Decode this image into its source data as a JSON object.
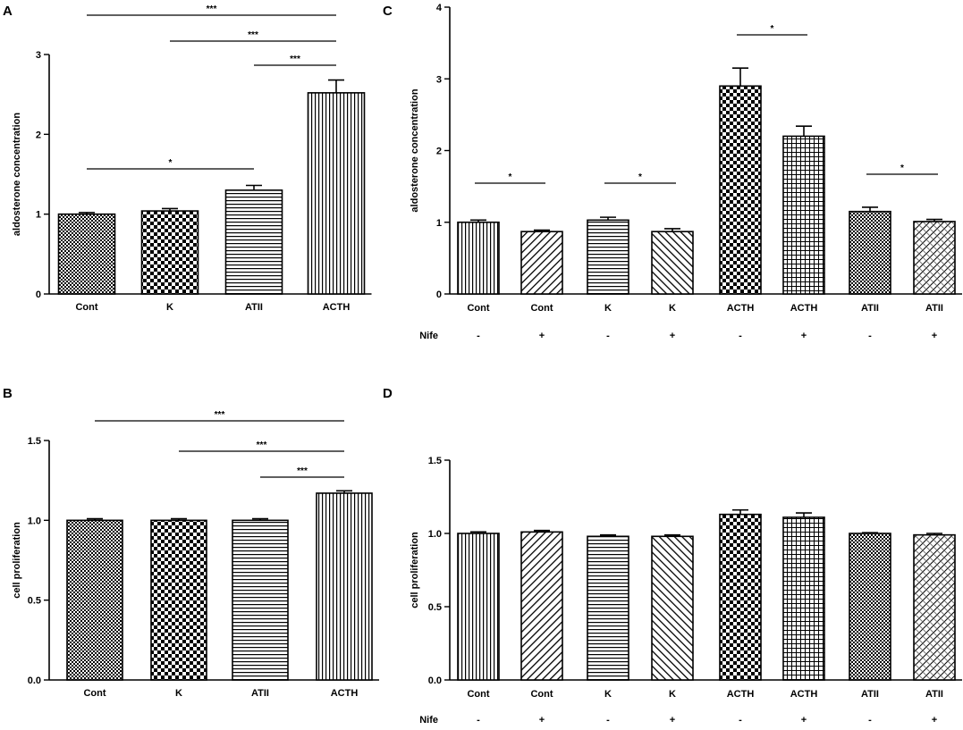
{
  "chart_data": [
    {
      "panel": "A",
      "type": "bar",
      "ylabel": "aldosterone concentration",
      "xlabel": "",
      "ylim": [
        0,
        3
      ],
      "yticks": [
        "0",
        "1",
        "2",
        "3"
      ],
      "categories": [
        "Cont",
        "K",
        "ATII",
        "ACTH"
      ],
      "values": [
        1.0,
        1.04,
        1.3,
        2.52
      ],
      "errors": [
        0.02,
        0.03,
        0.06,
        0.16
      ],
      "patterns": [
        "checker-fine",
        "checker-coarse",
        "hlines",
        "vlines"
      ],
      "significance": [
        {
          "from": 0,
          "to": 3,
          "label": "***"
        },
        {
          "from": 1,
          "to": 3,
          "label": "***"
        },
        {
          "from": 2,
          "to": 3,
          "label": "***"
        },
        {
          "from": 0,
          "to": 2,
          "label": "*"
        }
      ]
    },
    {
      "panel": "B",
      "type": "bar",
      "ylabel": "cell proliferation",
      "xlabel": "",
      "ylim": [
        0,
        1.5
      ],
      "yticks": [
        "0.0",
        "0.5",
        "1.0",
        "1.5"
      ],
      "categories": [
        "Cont",
        "K",
        "ATII",
        "ACTH"
      ],
      "values": [
        1.0,
        1.0,
        1.0,
        1.17
      ],
      "errors": [
        0.01,
        0.01,
        0.01,
        0.015
      ],
      "patterns": [
        "checker-fine",
        "checker-coarse",
        "hlines",
        "vlines"
      ],
      "significance": [
        {
          "from": 0,
          "to": 3,
          "label": "***"
        },
        {
          "from": 1,
          "to": 3,
          "label": "***"
        },
        {
          "from": 2,
          "to": 3,
          "label": "***"
        }
      ]
    },
    {
      "panel": "C",
      "type": "bar",
      "ylabel": "aldosterone concentration",
      "xlabel": "",
      "ylim": [
        0,
        4
      ],
      "yticks": [
        "0",
        "1",
        "2",
        "3",
        "4"
      ],
      "categories": [
        "Cont",
        "Cont",
        "K",
        "K",
        "ACTH",
        "ACTH",
        "ATII",
        "ATII"
      ],
      "row_label": "Nife",
      "nife": [
        "-",
        "+",
        "-",
        "+",
        "-",
        "+",
        "-",
        "+"
      ],
      "values": [
        1.0,
        0.87,
        1.03,
        0.87,
        2.9,
        2.2,
        1.15,
        1.01
      ],
      "errors": [
        0.03,
        0.02,
        0.04,
        0.04,
        0.25,
        0.14,
        0.06,
        0.03
      ],
      "patterns": [
        "vlines",
        "diag-right",
        "hlines",
        "diag-left",
        "checker-coarse",
        "grid",
        "checker-fine",
        "weave"
      ],
      "significance": [
        {
          "from": 0,
          "to": 1,
          "label": "*"
        },
        {
          "from": 2,
          "to": 3,
          "label": "*"
        },
        {
          "from": 4,
          "to": 5,
          "label": "*"
        },
        {
          "from": 6,
          "to": 7,
          "label": "*"
        }
      ]
    },
    {
      "panel": "D",
      "type": "bar",
      "ylabel": "cell proliferation",
      "xlabel": "",
      "ylim": [
        0,
        1.5
      ],
      "yticks": [
        "0.0",
        "0.5",
        "1.0",
        "1.5"
      ],
      "categories": [
        "Cont",
        "Cont",
        "K",
        "K",
        "ACTH",
        "ACTH",
        "ATII",
        "ATII"
      ],
      "row_label": "Nife",
      "nife": [
        "-",
        "+",
        "-",
        "+",
        "-",
        "+",
        "-",
        "+"
      ],
      "values": [
        1.0,
        1.01,
        0.98,
        0.98,
        1.13,
        1.11,
        1.0,
        0.99
      ],
      "errors": [
        0.01,
        0.01,
        0.01,
        0.01,
        0.03,
        0.03,
        0.005,
        0.01
      ],
      "patterns": [
        "vlines",
        "diag-right",
        "hlines",
        "diag-left",
        "checker-coarse",
        "grid",
        "checker-fine",
        "weave"
      ],
      "significance": []
    }
  ]
}
